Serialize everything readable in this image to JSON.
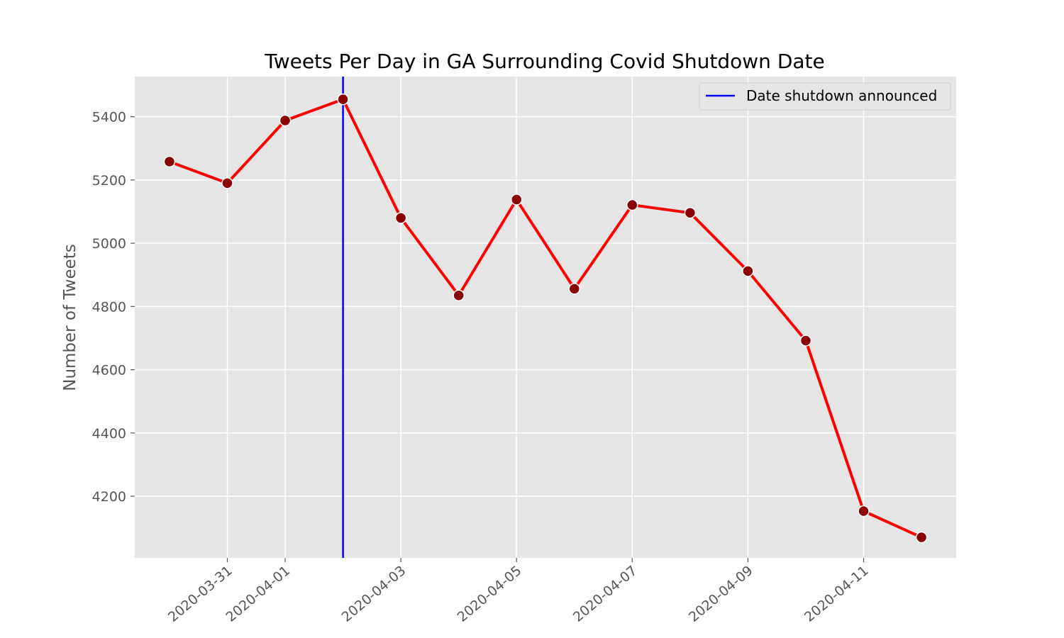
{
  "chart_data": {
    "type": "line",
    "title": "Tweets Per Day in GA Surrounding Covid Shutdown Date",
    "xlabel": "",
    "ylabel": "Number of Tweets",
    "x": [
      "2020-03-30",
      "2020-03-31",
      "2020-04-01",
      "2020-04-02",
      "2020-04-03",
      "2020-04-04",
      "2020-04-05",
      "2020-04-06",
      "2020-04-07",
      "2020-04-08",
      "2020-04-09",
      "2020-04-10",
      "2020-04-11",
      "2020-04-12"
    ],
    "series": [
      {
        "values": [
          5258,
          5190,
          5388,
          5455,
          5080,
          4835,
          5138,
          4856,
          5121,
          5096,
          4912,
          4692,
          4153,
          4070
        ],
        "color": "#ff0000",
        "marker_color": "#8b0000"
      }
    ],
    "xticks": [
      "2020-03-31",
      "2020-04-01",
      "2020-04-03",
      "2020-04-05",
      "2020-04-07",
      "2020-04-09",
      "2020-04-11"
    ],
    "yticks": [
      4200,
      4400,
      4600,
      4800,
      5000,
      5200,
      5400
    ],
    "ylim": [
      4005,
      5527
    ],
    "xlim": [
      "2020-03-29T09:36",
      "2020-04-12T14:24"
    ],
    "vline": {
      "x": "2020-04-02",
      "label": "Date shutdown announced",
      "color": "#0000ff"
    },
    "legend": {
      "position": "top-right",
      "entries": [
        "Date shutdown announced"
      ]
    },
    "grid": true,
    "background": "#e5e5e5"
  }
}
